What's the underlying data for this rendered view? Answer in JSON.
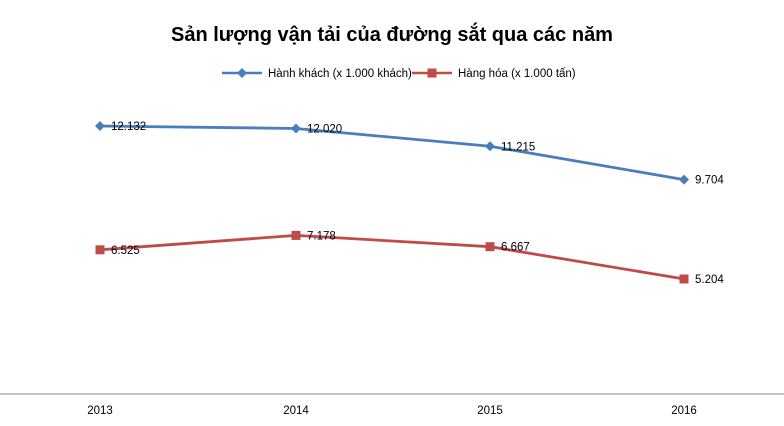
{
  "chart_data": {
    "type": "line",
    "title": "Sản lượng vận tải của đường sắt qua các năm",
    "xlabel": "",
    "ylabel": "",
    "grid": false,
    "legend_position": "top",
    "categories": [
      "2013",
      "2014",
      "2015",
      "2016"
    ],
    "ylim": [
      0,
      14000
    ],
    "series": [
      {
        "name": "Hành khách (x 1.000 khách)",
        "marker": "diamond",
        "color": "#4a7ebb",
        "values": [
          12132,
          12020,
          11215,
          9704
        ],
        "labels": [
          "12.132",
          "12.020",
          "11.215",
          "9.704"
        ]
      },
      {
        "name": "Hàng hóa (x 1.000 tấn)",
        "marker": "square",
        "color": "#be4b48",
        "values": [
          6525,
          7178,
          6667,
          5204
        ],
        "labels": [
          "6.525",
          "7.178",
          "6.667",
          "5.204"
        ]
      }
    ]
  },
  "colors": {
    "axis": "#888888",
    "text": "#000000",
    "background": "#ffffff"
  }
}
